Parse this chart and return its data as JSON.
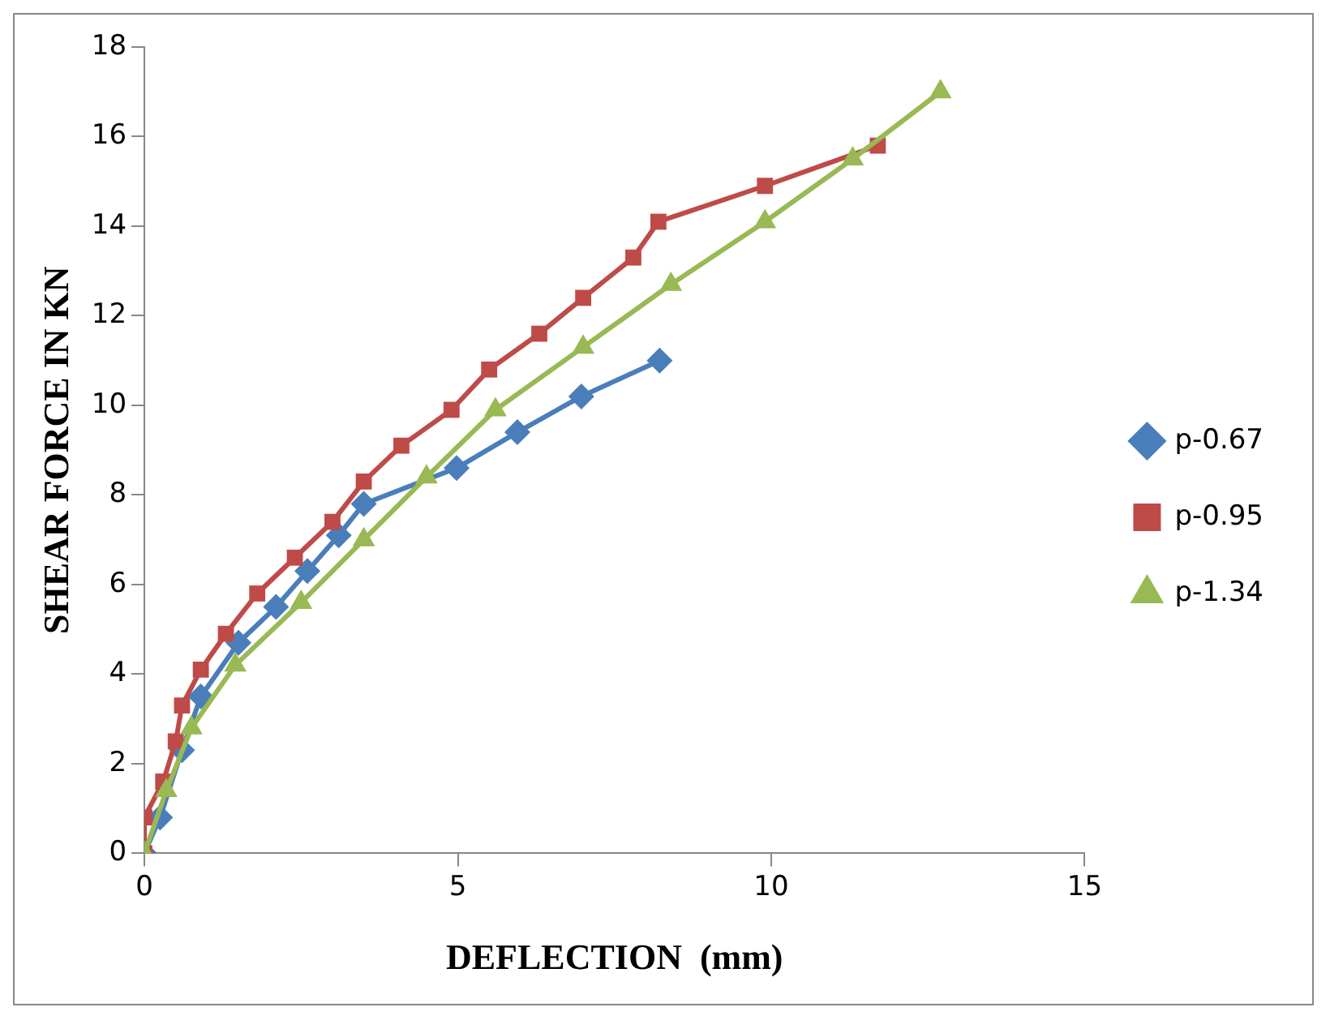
{
  "chart_data": {
    "type": "line",
    "xlabel": "DEFLECTION  (mm)",
    "ylabel": "SHEAR FORCE IN KN",
    "xlim": [
      0,
      15
    ],
    "xticks": [
      0,
      5,
      10,
      15
    ],
    "ylim": [
      0,
      18
    ],
    "yticks": [
      0,
      2,
      4,
      6,
      8,
      10,
      12,
      14,
      16,
      18
    ],
    "grid": false,
    "legend": "right",
    "series": [
      {
        "name": "p-0.67",
        "color": "#4a7ebb",
        "marker": "diamond",
        "x": [
          0,
          0.25,
          0.6,
          0.9,
          1.5,
          2.1,
          2.6,
          3.1,
          3.5,
          4.98,
          5.95,
          6.97,
          8.22
        ],
        "values": [
          0,
          0.8,
          2.3,
          3.5,
          4.7,
          5.5,
          6.3,
          7.1,
          7.8,
          8.6,
          9.4,
          10.2,
          11.0
        ]
      },
      {
        "name": "p-0.95",
        "color": "#be4b48",
        "marker": "square",
        "x": [
          0,
          0,
          0.3,
          0.5,
          0.6,
          0.9,
          1.3,
          1.8,
          2.4,
          3.0,
          3.5,
          4.1,
          4.9,
          5.5,
          6.3,
          7.0,
          7.8,
          8.2,
          9.9,
          11.7
        ],
        "values": [
          0,
          0.8,
          1.6,
          2.5,
          3.3,
          4.1,
          4.9,
          5.8,
          6.6,
          7.4,
          8.3,
          9.1,
          9.9,
          10.8,
          11.6,
          12.4,
          13.3,
          14.1,
          14.9,
          15.8
        ]
      },
      {
        "name": "p-1.34",
        "color": "#98b954",
        "marker": "triangle",
        "x": [
          0,
          0.35,
          0.75,
          1.45,
          2.5,
          3.5,
          4.5,
          5.6,
          7.0,
          8.4,
          9.9,
          11.3,
          12.7
        ],
        "values": [
          0,
          1.4,
          2.8,
          4.2,
          5.6,
          7.0,
          8.4,
          9.9,
          11.3,
          12.7,
          14.1,
          15.5,
          17.0
        ]
      }
    ]
  }
}
